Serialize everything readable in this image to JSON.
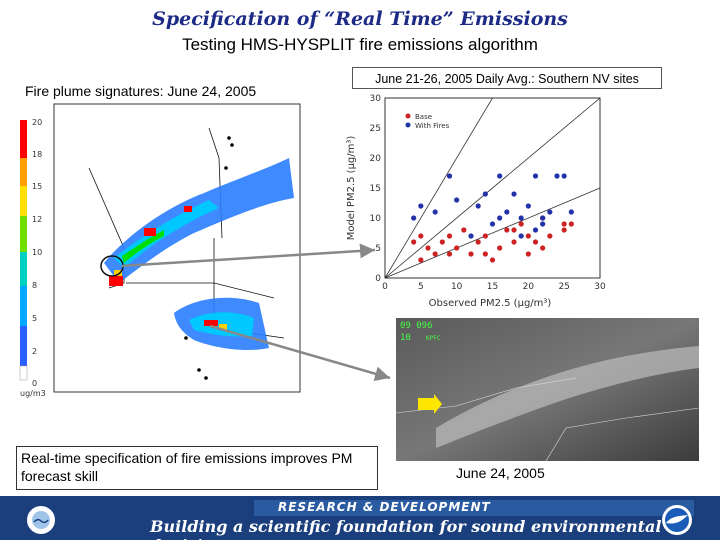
{
  "title": "Specification of “Real Time” Emissions",
  "subtitle": "Testing HMS-HYSPLIT fire emissions algorithm",
  "left_caption": "Fire plume signatures: June 24, 2005",
  "right_caption": "June 21-26, 2005 Daily Avg.: Southern NV sites",
  "note": "Real-time specification of fire emissions improves PM forecast skill",
  "satellite_caption": "June 24, 2005",
  "satellite_overlay": {
    "line1": "09 096",
    "line2": "10",
    "line2_suffix": "KPFC"
  },
  "map": {
    "colorbar_ticks": [
      "20",
      "18",
      "15",
      "12",
      "10",
      "8",
      "5",
      "2",
      "0"
    ],
    "colorbar_unit": "ug/m3",
    "colors": [
      "#ff0000",
      "#ffd000",
      "#00e000",
      "#00c8ff",
      "#2a7dff",
      "#1a40ff"
    ]
  },
  "footer": {
    "label": "RESEARCH & DEVELOPMENT",
    "slogan": "Building a scientific foundation for sound environmental decisions",
    "left_logo": "epa-seal-icon",
    "right_logo": "noaa-logo-icon"
  },
  "chart_data": {
    "type": "scatter",
    "title": "",
    "xlabel": "Observed PM2.5 (μg/m³)",
    "ylabel": "Model PM2.5 (μg/m³)",
    "xlim": [
      0,
      30
    ],
    "ylim": [
      0,
      30
    ],
    "xticks": [
      "0",
      "5",
      "10",
      "15",
      "20",
      "25",
      "30"
    ],
    "yticks": [
      "0",
      "5",
      "10",
      "15",
      "20",
      "25",
      "30"
    ],
    "grid": false,
    "legend_position": "top-left",
    "reference_lines": [
      "1:1",
      "2:1",
      "1:2"
    ],
    "series": [
      {
        "name": "Base",
        "color": "#cc2222",
        "points": [
          [
            4,
            6
          ],
          [
            5,
            3
          ],
          [
            6,
            5
          ],
          [
            7,
            4
          ],
          [
            8,
            6
          ],
          [
            9,
            7
          ],
          [
            10,
            5
          ],
          [
            11,
            8
          ],
          [
            12,
            4
          ],
          [
            13,
            6
          ],
          [
            14,
            7
          ],
          [
            15,
            3
          ],
          [
            16,
            5
          ],
          [
            17,
            8
          ],
          [
            18,
            6
          ],
          [
            19,
            9
          ],
          [
            20,
            4
          ],
          [
            20,
            7
          ],
          [
            21,
            6
          ],
          [
            22,
            5
          ],
          [
            22,
            10
          ],
          [
            23,
            7
          ],
          [
            25,
            8
          ],
          [
            25,
            9
          ],
          [
            26,
            9
          ],
          [
            5,
            7
          ],
          [
            9,
            4
          ],
          [
            14,
            4
          ],
          [
            18,
            8
          ]
        ]
      },
      {
        "name": "With Fires",
        "color": "#2233aa",
        "points": [
          [
            4,
            10
          ],
          [
            5,
            12
          ],
          [
            7,
            11
          ],
          [
            9,
            17
          ],
          [
            10,
            13
          ],
          [
            12,
            7
          ],
          [
            13,
            12
          ],
          [
            14,
            14
          ],
          [
            15,
            9
          ],
          [
            16,
            17
          ],
          [
            16,
            10
          ],
          [
            17,
            11
          ],
          [
            18,
            14
          ],
          [
            19,
            10
          ],
          [
            20,
            12
          ],
          [
            21,
            17
          ],
          [
            21,
            8
          ],
          [
            22,
            9
          ],
          [
            23,
            11
          ],
          [
            24,
            17
          ],
          [
            25,
            17
          ],
          [
            26,
            11
          ],
          [
            19,
            7
          ],
          [
            22,
            10
          ]
        ]
      }
    ]
  }
}
